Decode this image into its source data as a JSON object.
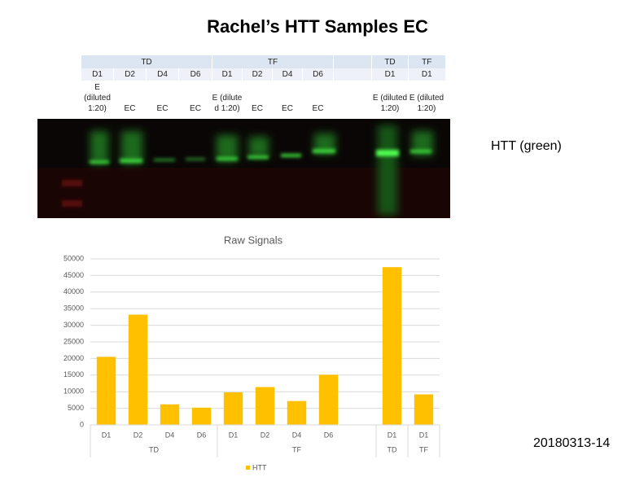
{
  "title": "Rachel’s HTT Samples EC",
  "lane_table": {
    "columns": [
      {
        "group": "TD",
        "day": "D1",
        "sample": "E (diluted 1:20)"
      },
      {
        "group": "TD",
        "day": "D2",
        "sample": "EC"
      },
      {
        "group": "TD",
        "day": "D4",
        "sample": "EC"
      },
      {
        "group": "TD",
        "day": "D6",
        "sample": "EC"
      },
      {
        "group": "TF",
        "day": "D1",
        "sample": "E (dilute d 1:20)"
      },
      {
        "group": "TF",
        "day": "D2",
        "sample": "EC"
      },
      {
        "group": "TF",
        "day": "D4",
        "sample": "EC"
      },
      {
        "group": "TF",
        "day": "D6",
        "sample": "EC"
      },
      {},
      {
        "group": "TD",
        "day": "D1",
        "sample": "E (diluted 1:20)"
      },
      {
        "group": "TF",
        "day": "D1",
        "sample": "E (diluted 1:20)"
      }
    ]
  },
  "blot_label": "HTT (green)",
  "footer": "20180313-14",
  "chart_data": {
    "type": "bar",
    "title": "Raw Signals",
    "categories": [
      "D1",
      "D2",
      "D4",
      "D6",
      "D1",
      "D2",
      "D4",
      "D6",
      null,
      "D1",
      "D1"
    ],
    "groups": [
      {
        "label": "TD",
        "count": 4
      },
      {
        "label": "TF",
        "count": 5
      },
      {
        "label": "TD",
        "count": 1
      },
      {
        "label": "TF",
        "count": 1
      }
    ],
    "series": [
      {
        "name": "HTT",
        "color": "#ffc000",
        "values": [
          20500,
          33200,
          6200,
          5200,
          9800,
          11400,
          7200,
          15100,
          null,
          47500,
          9200
        ]
      }
    ],
    "ylim": [
      0,
      50000
    ],
    "yticks": [
      0,
      5000,
      10000,
      15000,
      20000,
      25000,
      30000,
      35000,
      40000,
      45000,
      50000
    ],
    "grid": true,
    "legend": "bottom"
  }
}
